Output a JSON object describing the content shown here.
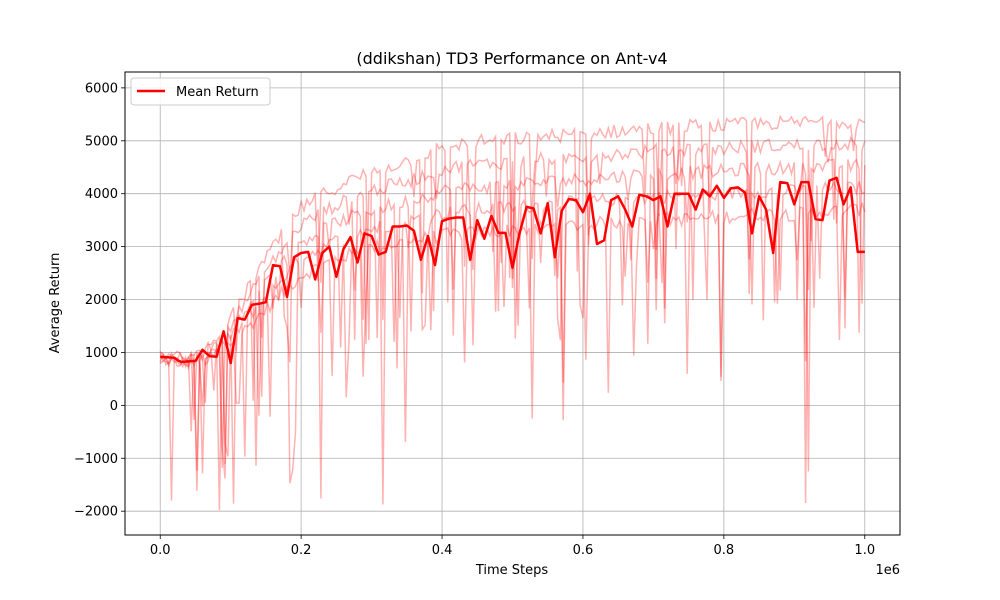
{
  "chart_data": {
    "type": "line",
    "title": "(ddikshan) TD3 Performance on Ant-v4",
    "xlabel": "Time Steps",
    "ylabel": "Average Return",
    "x_offset_label": "1e6",
    "xlim": [
      -50000,
      1050000
    ],
    "ylim": [
      -2450,
      6300
    ],
    "x_ticks": [
      0,
      200000,
      400000,
      600000,
      800000,
      1000000
    ],
    "x_tick_labels": [
      "0.0",
      "0.2",
      "0.4",
      "0.6",
      "0.8",
      "1.0"
    ],
    "y_ticks": [
      -2000,
      -1000,
      0,
      1000,
      2000,
      3000,
      4000,
      5000,
      6000
    ],
    "y_tick_labels": [
      "−2000",
      "−1000",
      "0",
      "1000",
      "2000",
      "3000",
      "4000",
      "5000",
      "6000"
    ],
    "grid": true,
    "legend": {
      "position": "top-left",
      "entries": [
        "Mean Return"
      ]
    },
    "colors": {
      "mean": "#ff0000",
      "seed": "#ff0000"
    },
    "seed_runs": 5,
    "seed_envelope": {
      "x": [
        0,
        30000,
        60000,
        100000,
        150000,
        200000,
        250000,
        300000,
        350000,
        400000,
        450000,
        500000,
        550000,
        600000,
        650000,
        700000,
        750000,
        800000,
        850000,
        900000,
        950000,
        1000000
      ],
      "upper": [
        950,
        900,
        1000,
        1700,
        2900,
        3900,
        4300,
        4600,
        4800,
        5100,
        5200,
        5250,
        5300,
        5350,
        5400,
        5450,
        5500,
        5500,
        5550,
        5550,
        5600,
        5550
      ],
      "lower": [
        850,
        800,
        780,
        1100,
        1700,
        2300,
        2600,
        2800,
        2900,
        3000,
        3050,
        3100,
        3150,
        3200,
        3250,
        3300,
        3300,
        3350,
        3400,
        3400,
        3450,
        3500
      ]
    },
    "series": [
      {
        "name": "Mean Return",
        "x": [
          0,
          10000,
          20000,
          25000,
          30000,
          40000,
          50000,
          60000,
          70000,
          80000,
          90000,
          100000,
          110000,
          120000,
          130000,
          140000,
          150000,
          160000,
          170000,
          180000,
          190000,
          200000,
          210000,
          220000,
          230000,
          240000,
          250000,
          260000,
          270000,
          280000,
          290000,
          300000,
          310000,
          320000,
          330000,
          340000,
          350000,
          360000,
          370000,
          380000,
          390000,
          400000,
          410000,
          420000,
          430000,
          440000,
          450000,
          460000,
          470000,
          480000,
          490000,
          500000,
          510000,
          520000,
          530000,
          540000,
          550000,
          560000,
          570000,
          580000,
          590000,
          600000,
          610000,
          620000,
          630000,
          640000,
          650000,
          660000,
          670000,
          680000,
          690000,
          700000,
          710000,
          720000,
          730000,
          740000,
          750000,
          760000,
          770000,
          780000,
          790000,
          800000,
          810000,
          820000,
          830000,
          840000,
          850000,
          860000,
          870000,
          880000,
          890000,
          900000,
          910000,
          920000,
          930000,
          940000,
          950000,
          960000,
          970000,
          980000,
          990000,
          1000000
        ],
        "values": [
          920,
          910,
          900,
          850,
          820,
          830,
          840,
          1050,
          930,
          920,
          1400,
          800,
          1650,
          1620,
          1900,
          1920,
          1950,
          2650,
          2630,
          2050,
          2800,
          2880,
          2900,
          2380,
          2880,
          3000,
          2430,
          2950,
          3180,
          2700,
          3250,
          3200,
          2850,
          2900,
          3380,
          3380,
          3400,
          3300,
          2750,
          3200,
          2650,
          3480,
          3530,
          3550,
          3550,
          2750,
          3500,
          3150,
          3580,
          3260,
          3260,
          2600,
          3250,
          3750,
          3720,
          3250,
          3820,
          2800,
          3680,
          3900,
          3880,
          3650,
          4000,
          3050,
          3120,
          3880,
          3950,
          3700,
          3380,
          3980,
          3950,
          3880,
          3950,
          3380,
          4000,
          4000,
          4000,
          3700,
          4080,
          3950,
          4150,
          3920,
          4100,
          4120,
          4020,
          3250,
          3950,
          3700,
          2880,
          4220,
          4200,
          3800,
          4220,
          4220,
          3520,
          3500,
          4250,
          4300,
          3800,
          4120,
          2900,
          2900
        ]
      }
    ]
  }
}
